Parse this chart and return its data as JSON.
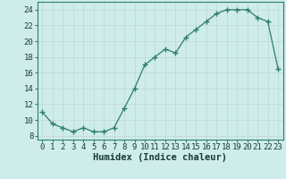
{
  "x": [
    0,
    1,
    2,
    3,
    4,
    5,
    6,
    7,
    8,
    9,
    10,
    11,
    12,
    13,
    14,
    15,
    16,
    17,
    18,
    19,
    20,
    21,
    22,
    23
  ],
  "y": [
    11,
    9.5,
    9,
    8.5,
    9,
    8.5,
    8.5,
    9,
    11.5,
    14,
    17,
    18,
    19,
    18.5,
    20.5,
    21.5,
    22.5,
    23.5,
    24,
    24,
    24,
    23,
    22.5,
    16.5
  ],
  "line_color": "#2d7d6f",
  "marker_color": "#2d7d6f",
  "bg_color": "#ceecea",
  "grid_major_color": "#c0dbd8",
  "grid_minor_color": "#d4ecea",
  "xlabel": "Humidex (Indice chaleur)",
  "xlim": [
    0,
    23
  ],
  "ylim": [
    7.5,
    25
  ],
  "yticks": [
    8,
    10,
    12,
    14,
    16,
    18,
    20,
    22,
    24
  ],
  "xticks": [
    0,
    1,
    2,
    3,
    4,
    5,
    6,
    7,
    8,
    9,
    10,
    11,
    12,
    13,
    14,
    15,
    16,
    17,
    18,
    19,
    20,
    21,
    22,
    23
  ],
  "xlabel_fontsize": 7.5,
  "tick_fontsize": 6.5,
  "spine_color": "#2d7d6f",
  "tick_color": "#2d7d6f",
  "label_color": "#1a3a34"
}
